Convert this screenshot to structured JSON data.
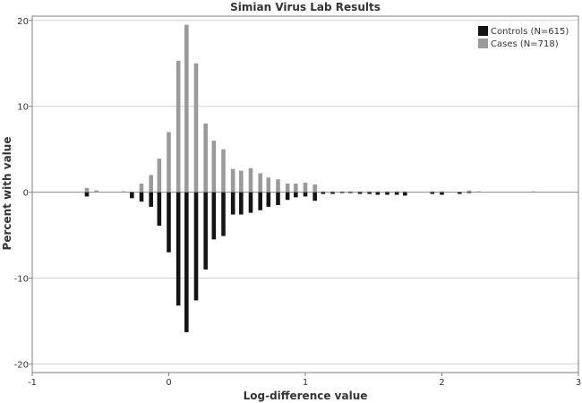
{
  "chart_data": {
    "type": "bar",
    "title": "Simian Virus Lab Results",
    "xlabel": "Log-difference value",
    "ylabel": "Percent with value",
    "xlim": [
      -1,
      3
    ],
    "ylim": [
      -21,
      20.5
    ],
    "x_ticks": [
      -1,
      0,
      1,
      2,
      3
    ],
    "y_ticks": [
      -20,
      -10,
      0,
      10,
      20
    ],
    "grid": "horizontal",
    "bar_width": 0.03,
    "legend_position": "top-right",
    "series": [
      {
        "name": "Controls (N=615)",
        "color": "#141414",
        "x": [
          -0.6,
          -0.27,
          -0.2,
          -0.13,
          -0.07,
          0.0,
          0.07,
          0.13,
          0.2,
          0.27,
          0.33,
          0.4,
          0.47,
          0.53,
          0.6,
          0.67,
          0.73,
          0.8,
          0.87,
          0.93,
          1.0,
          1.07,
          1.13,
          1.2,
          1.27,
          1.33,
          1.4,
          1.47,
          1.53,
          1.6,
          1.67,
          1.73,
          1.93,
          2.0,
          2.13,
          2.2
        ],
        "values": [
          -0.5,
          -0.7,
          -1.1,
          -1.7,
          -3.9,
          -7.0,
          -13.2,
          -16.3,
          -12.6,
          -9.0,
          -5.5,
          -5.1,
          -2.6,
          -2.6,
          -2.4,
          -2.1,
          -1.7,
          -1.5,
          -0.9,
          -0.6,
          -0.5,
          -1.0,
          -0.2,
          -0.2,
          -0.1,
          -0.1,
          -0.2,
          -0.2,
          -0.3,
          -0.3,
          -0.3,
          -0.4,
          -0.2,
          -0.3,
          -0.2,
          -0.1
        ]
      },
      {
        "name": "Cases (N=718)",
        "color": "#9a9a9a",
        "x": [
          -0.6,
          -0.53,
          -0.33,
          -0.2,
          -0.13,
          -0.07,
          0.0,
          0.07,
          0.13,
          0.2,
          0.27,
          0.33,
          0.4,
          0.47,
          0.53,
          0.6,
          0.67,
          0.73,
          0.8,
          0.87,
          0.93,
          1.0,
          1.07,
          1.13,
          1.2,
          1.27,
          1.33,
          1.4,
          1.47,
          1.53,
          1.6,
          1.67,
          1.73,
          1.93,
          2.0,
          2.2,
          2.27,
          2.67
        ],
        "values": [
          0.5,
          0.2,
          0.1,
          1.0,
          2.0,
          3.9,
          7.0,
          15.3,
          19.5,
          15.0,
          8.0,
          6.0,
          5.0,
          2.7,
          2.5,
          2.8,
          2.2,
          1.7,
          1.5,
          1.0,
          1.0,
          1.1,
          0.9,
          0.1,
          0.1,
          0.1,
          0.1,
          0.1,
          0.1,
          0.1,
          0.1,
          0.1,
          0.1,
          0.1,
          0.1,
          0.2,
          0.1,
          0.1
        ]
      }
    ]
  }
}
